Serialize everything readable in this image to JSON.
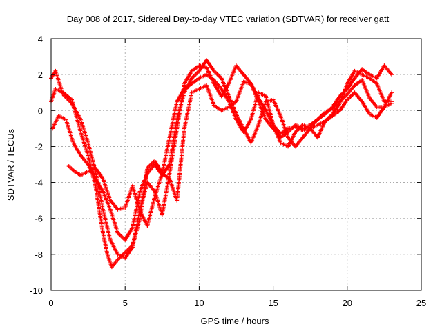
{
  "chart_data": {
    "type": "scatter",
    "title": "Day 008 of 2017, Sidereal Day-to-day VTEC variation (SDTVAR) for receiver gatt",
    "xlabel": "GPS time / hours",
    "ylabel": "SDTVAR / TECUs",
    "xlim": [
      0,
      25
    ],
    "ylim": [
      -10,
      4
    ],
    "xticks": [
      0,
      5,
      10,
      15,
      20,
      25
    ],
    "yticks": [
      -10,
      -8,
      -6,
      -4,
      -2,
      0,
      2,
      4
    ],
    "grid": true,
    "marker": "+",
    "color": "#ff0000",
    "series": [
      {
        "x": [
          0,
          0.3,
          0.8,
          1.4,
          2,
          2.5,
          3,
          3.5,
          3.8,
          4.1,
          4.5,
          5,
          5.5,
          6,
          6.5,
          7,
          7.5,
          8,
          8.5,
          9,
          9.5,
          10,
          10.5,
          11,
          11.5,
          12,
          12.5,
          13,
          13.5,
          14,
          14.5,
          15,
          15.5,
          16,
          16.5,
          17,
          17.5,
          18,
          18.5,
          19,
          19.5,
          20,
          20.5,
          21,
          21.5,
          22,
          22.5,
          23
        ],
        "y": [
          0.5,
          1.2,
          1.0,
          0.6,
          -1.2,
          -2.5,
          -4.2,
          -6.8,
          -8.0,
          -8.7,
          -8.3,
          -7.9,
          -7.5,
          -6.0,
          -3.2,
          -2.8,
          -3.5,
          -1.5,
          0.5,
          1.2,
          1.5,
          1.8,
          2.0,
          1.7,
          1.2,
          0.5,
          -0.5,
          -1.2,
          -0.5,
          1.0,
          0.8,
          -0.8,
          -1.8,
          -2.0,
          -1.2,
          -0.8,
          -1.0,
          -1.5,
          -0.6,
          -0.2,
          0.4,
          1.5,
          2.2,
          2.0,
          1.8,
          1.5,
          0.5,
          0.5
        ]
      },
      {
        "x": [
          0,
          0.3,
          0.8,
          1.4,
          2,
          2.5,
          3,
          3.5,
          4,
          4.5,
          5,
          5.5,
          6,
          6.5,
          7,
          7.5,
          8,
          8.5,
          9,
          9.5,
          10,
          10.5,
          11,
          11.5,
          12,
          12.5,
          13,
          13.5,
          14,
          14.5,
          15,
          15.5,
          16,
          16.5,
          17,
          17.5,
          18,
          18.5,
          19,
          19.5,
          20,
          20.5,
          21,
          21.5,
          22,
          22.5,
          23
        ],
        "y": [
          1.8,
          2.2,
          0.9,
          0.4,
          -0.5,
          -1.8,
          -3.4,
          -5.5,
          -7.2,
          -8.0,
          -8.2,
          -7.6,
          -5.5,
          -4.0,
          -4.5,
          -5.8,
          -3.5,
          -1.0,
          1.5,
          2.2,
          2.5,
          2.4,
          1.5,
          0.8,
          1.5,
          2.5,
          2.0,
          1.5,
          0.5,
          -0.5,
          -1.0,
          -1.5,
          -1.2,
          -0.8,
          -1.0,
          -0.8,
          -0.5,
          -0.2,
          0.2,
          0.8,
          1.2,
          1.8,
          2.3,
          2.0,
          1.8,
          2.5,
          2.0
        ]
      },
      {
        "x": [
          0.1,
          0.5,
          1,
          1.5,
          2,
          2.5,
          3,
          3.5,
          4,
          4.5,
          5,
          5.5,
          6,
          6.5,
          7,
          7.5,
          8,
          8.5,
          9,
          9.5,
          10,
          10.5,
          11,
          11.5,
          12,
          12.5,
          13,
          13.5,
          14,
          14.5,
          15,
          15.5,
          16,
          16.5,
          17,
          17.5,
          18,
          18.5,
          19,
          19.5,
          20,
          20.5,
          21,
          21.5,
          22,
          22.5,
          23
        ],
        "y": [
          -1.0,
          -0.3,
          -0.5,
          -1.8,
          -2.5,
          -3.0,
          -3.8,
          -4.5,
          -5.5,
          -6.8,
          -7.2,
          -6.5,
          -4.5,
          -3.5,
          -3.0,
          -3.6,
          -3.0,
          -0.5,
          1.0,
          1.8,
          2.2,
          2.8,
          2.2,
          1.8,
          0.8,
          -0.2,
          -1.0,
          -1.8,
          -0.8,
          0.5,
          0.6,
          -0.3,
          -1.5,
          -2.0,
          -1.5,
          -1.0,
          -0.8,
          -0.6,
          -0.3,
          0.0,
          0.6,
          1.0,
          0.5,
          -0.2,
          -0.4,
          0.2,
          0.4
        ]
      },
      {
        "x": [
          1.2,
          1.6,
          2,
          2.5,
          3,
          3.5,
          4,
          4.5,
          5,
          5.5,
          6,
          6.5,
          7,
          7.5,
          8,
          8.5,
          9,
          9.5,
          10,
          10.5,
          11,
          11.5,
          12,
          12.5,
          13,
          13.5,
          14,
          14.5,
          15,
          15.5,
          16,
          16.5,
          17,
          17.5,
          18,
          18.5,
          19,
          19.5,
          20,
          20.5,
          21,
          21.5,
          22,
          22.5,
          23
        ],
        "y": [
          -3.1,
          -3.4,
          -3.6,
          -3.4,
          -3.2,
          -3.8,
          -5.0,
          -5.5,
          -5.4,
          -4.2,
          -5.6,
          -6.4,
          -4.8,
          -3.5,
          -3.8,
          -5.0,
          -1.0,
          1.0,
          1.2,
          1.4,
          0.3,
          0.0,
          0.2,
          0.5,
          1.6,
          1.5,
          0.7,
          0.0,
          -0.8,
          -1.3,
          -1.0,
          -0.9,
          -1.1,
          -0.9,
          -0.5,
          -0.1,
          0.1,
          0.5,
          0.9,
          1.4,
          1.7,
          0.7,
          0.2,
          0.2,
          1.0
        ]
      }
    ]
  }
}
